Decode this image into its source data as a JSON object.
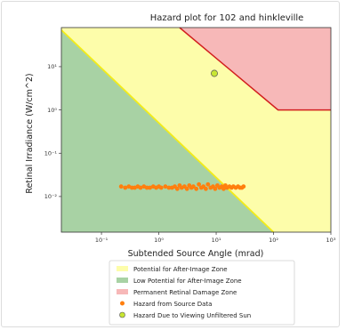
{
  "chart_data": {
    "type": "area",
    "title": "Hazard plot for 102 and hinkleville",
    "xlabel": "Subtended Source Angle (mrad)",
    "ylabel": "Retinal Irradiance (W/cm^2)",
    "xscale": "log",
    "yscale": "log",
    "xlim": [
      0.02,
      1000
    ],
    "ylim": [
      0.0015,
      80
    ],
    "x_ticks": [
      {
        "value": 0.1,
        "label": "10⁻¹"
      },
      {
        "value": 1,
        "label": "10⁰"
      },
      {
        "value": 10,
        "label": "10¹"
      },
      {
        "value": 100,
        "label": "10²"
      },
      {
        "value": 1000,
        "label": "10³"
      }
    ],
    "y_ticks": [
      {
        "value": 10,
        "label": "10¹"
      },
      {
        "value": 1,
        "label": "10⁰"
      },
      {
        "value": 0.1,
        "label": "10⁻¹"
      },
      {
        "value": 0.01,
        "label": "10⁻²"
      }
    ],
    "grid": false,
    "legend_position": "bottom",
    "zones": [
      {
        "name": "Potential for After-Image Zone",
        "color": "#fdfdaa"
      },
      {
        "name": "Low Potential for After-Image Zone",
        "color": "#a8d2a4"
      },
      {
        "name": "Permanent Retinal Damage Zone",
        "color": "#f7b8b8"
      }
    ],
    "boundaries": {
      "low_after_image": {
        "color": "#f3ec18",
        "points": [
          [
            0.02,
            70
          ],
          [
            100,
            0.0015
          ]
        ]
      },
      "permanent_damage": {
        "color": "#d21e1e",
        "points": [
          [
            2.3,
            80
          ],
          [
            120,
            1
          ],
          [
            1000,
            1
          ]
        ]
      }
    },
    "series": [
      {
        "name": "Hazard from Source Data",
        "type": "scatter",
        "color": "#ff7f0e",
        "x": [
          0.22,
          0.26,
          0.3,
          0.34,
          0.38,
          0.43,
          0.48,
          0.55,
          0.62,
          0.7,
          0.8,
          0.9,
          1.0,
          1.1,
          1.3,
          1.5,
          1.7,
          1.9,
          2.1,
          2.3,
          2.5,
          2.8,
          3.1,
          3.4,
          3.7,
          4.0,
          4.5,
          5.0,
          5.5,
          6.0,
          6.6,
          7.2,
          8.0,
          8.8,
          9.6,
          10.5,
          11.5,
          12.5,
          13.5,
          14.5,
          15.5,
          17.0,
          18.5,
          20.0,
          22.0,
          24.0,
          26.0,
          28.0,
          30.0
        ],
        "y": [
          0.017,
          0.016,
          0.017,
          0.016,
          0.016,
          0.017,
          0.016,
          0.017,
          0.016,
          0.016,
          0.017,
          0.016,
          0.017,
          0.016,
          0.017,
          0.016,
          0.016,
          0.017,
          0.015,
          0.018,
          0.016,
          0.017,
          0.015,
          0.018,
          0.016,
          0.017,
          0.015,
          0.019,
          0.016,
          0.017,
          0.015,
          0.019,
          0.016,
          0.017,
          0.015,
          0.018,
          0.016,
          0.017,
          0.015,
          0.018,
          0.016,
          0.017,
          0.016,
          0.017,
          0.016,
          0.017,
          0.016,
          0.016,
          0.017
        ]
      },
      {
        "name": "Hazard Due to Viewing Unfiltered Sun",
        "type": "scatter",
        "color": "#c8e632",
        "x": [
          9.3
        ],
        "y": [
          7.0
        ]
      }
    ]
  }
}
